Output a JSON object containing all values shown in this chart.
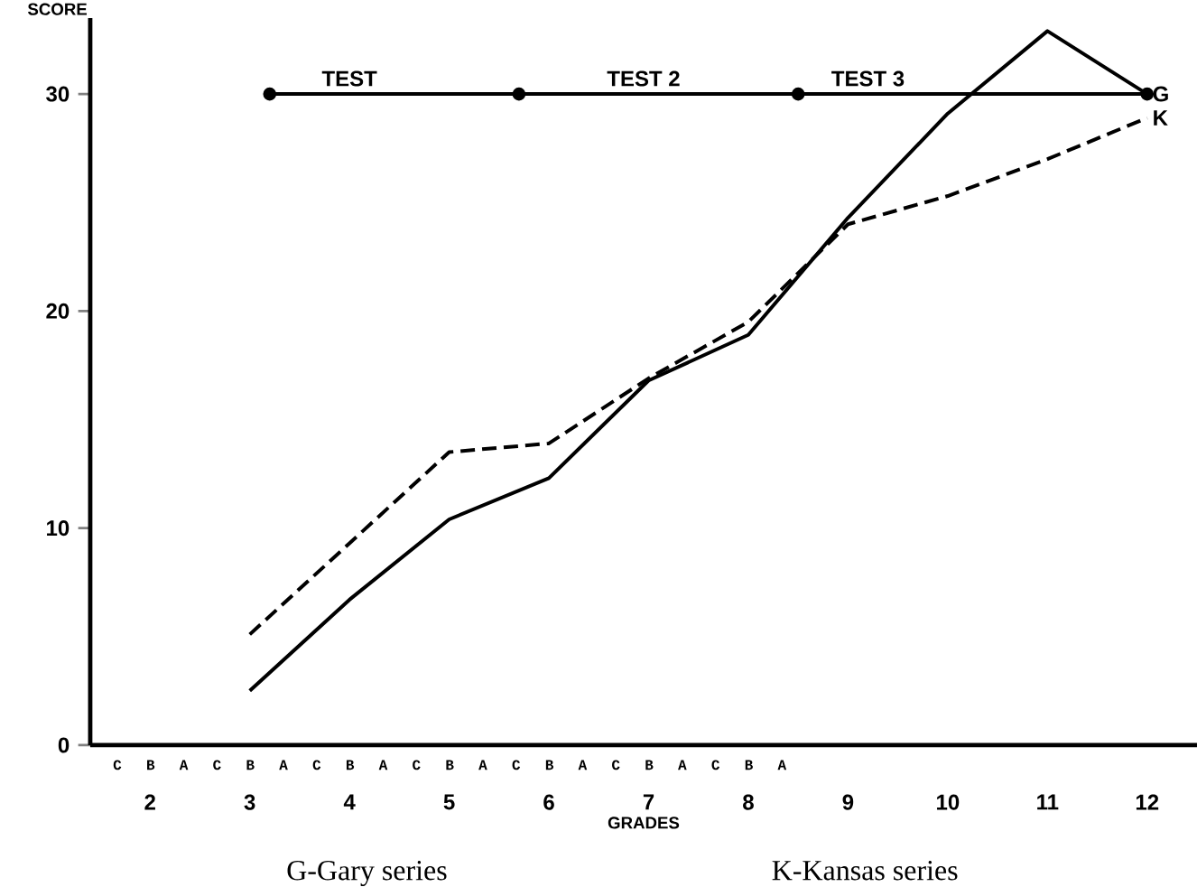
{
  "chart_data": {
    "type": "line",
    "xlabel": "GRADES",
    "ylabel": "SCORE",
    "xlim": [
      1.4,
      12.5
    ],
    "ylim": [
      0,
      33.5
    ],
    "xticks": [
      2,
      3,
      4,
      5,
      6,
      7,
      8,
      9,
      10,
      11,
      12
    ],
    "yticks": [
      0,
      10,
      20,
      30
    ],
    "series": [
      {
        "name": "G",
        "color": "#000000",
        "line_style": "solid",
        "x": [
          3,
          4,
          5,
          6,
          7,
          8,
          9,
          10,
          11,
          12
        ],
        "values": [
          2.5,
          6.7,
          10.4,
          12.3,
          16.8,
          18.9,
          24.3,
          29.1,
          32.9,
          30.0
        ]
      },
      {
        "name": "K",
        "color": "#000000",
        "line_style": "dashed",
        "x": [
          3,
          4,
          5,
          6,
          7,
          8,
          9,
          10,
          11,
          12
        ],
        "values": [
          5.1,
          9.3,
          13.5,
          13.9,
          16.9,
          19.5,
          24.0,
          25.3,
          27.0,
          28.9
        ]
      },
      {
        "color": "#000000",
        "line_style": "solid",
        "marker": "circle",
        "x": [
          3.2,
          5.7,
          8.5,
          12
        ],
        "values": [
          30,
          30,
          30,
          30
        ]
      }
    ],
    "annotations": [
      {
        "text": "TEST",
        "x": 4.0,
        "y": 30
      },
      {
        "text": "TEST 2",
        "x": 6.95,
        "y": 30
      },
      {
        "text": "TEST 3",
        "x": 9.2,
        "y": 30
      },
      "C B A C B A C B A C B A C B A C B A C B A",
      "G-Gary series",
      "K-Kansas series"
    ]
  }
}
